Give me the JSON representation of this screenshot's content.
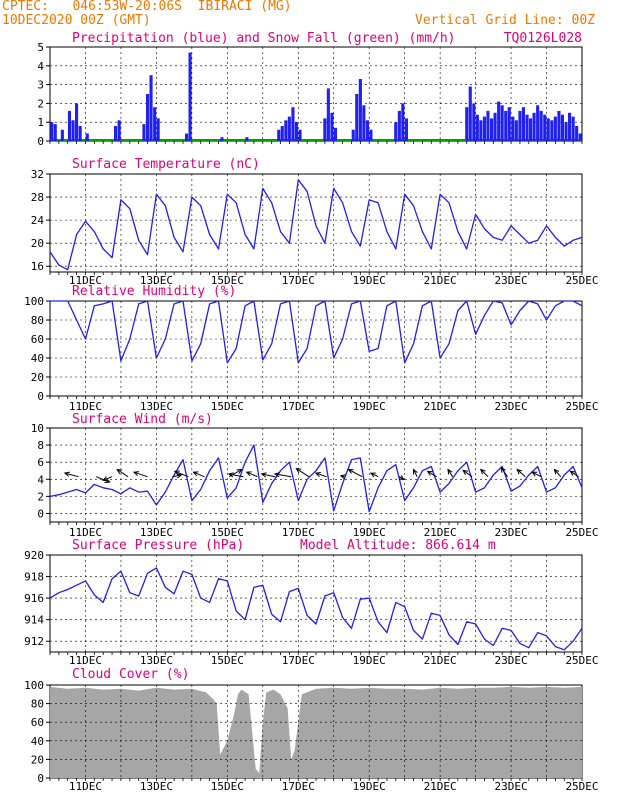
{
  "header": {
    "line1_left": "CPTEC:   046:53W-20:06S  IBIRACI (MG)",
    "line2_left": "10DEC2020 00Z (GMT)",
    "line2_right": "Vertical Grid Line: 00Z",
    "code": "TQ0126L028"
  },
  "colors": {
    "title": "#e0007c",
    "header": "#f07800",
    "series": "#2020f0",
    "snow": "#00a000",
    "cloud": "#a6a6a6"
  },
  "date_labels": [
    "11DEC",
    "13DEC",
    "15DEC",
    "17DEC",
    "19DEC",
    "21DEC",
    "23DEC",
    "25DEC"
  ],
  "chart_data": [
    {
      "id": "precip",
      "type": "bar",
      "title": "Precipitation (blue) and Snow Fall (green) (mm/h)",
      "ylim": [
        0,
        5
      ],
      "yticks": [
        0,
        1,
        2,
        3,
        4,
        5
      ],
      "xlim": [
        10.0,
        25.0
      ],
      "x_unit": "day of December 2020 (00Z)",
      "events": [
        {
          "day": 10.05,
          "value": 1.0
        },
        {
          "day": 10.15,
          "value": 0.9
        },
        {
          "day": 10.35,
          "value": 0.6
        },
        {
          "day": 10.55,
          "value": 1.6
        },
        {
          "day": 10.65,
          "value": 1.1
        },
        {
          "day": 10.75,
          "value": 2.0
        },
        {
          "day": 10.85,
          "value": 0.8
        },
        {
          "day": 11.05,
          "value": 0.4
        },
        {
          "day": 11.85,
          "value": 0.8
        },
        {
          "day": 11.95,
          "value": 1.1
        },
        {
          "day": 12.65,
          "value": 0.9
        },
        {
          "day": 12.75,
          "value": 2.5
        },
        {
          "day": 12.85,
          "value": 3.5
        },
        {
          "day": 12.95,
          "value": 1.8
        },
        {
          "day": 13.05,
          "value": 1.2
        },
        {
          "day": 13.85,
          "value": 0.4
        },
        {
          "day": 13.95,
          "value": 4.7
        },
        {
          "day": 14.85,
          "value": 0.2
        },
        {
          "day": 15.55,
          "value": 0.2
        },
        {
          "day": 16.45,
          "value": 0.6
        },
        {
          "day": 16.55,
          "value": 0.8
        },
        {
          "day": 16.65,
          "value": 1.1
        },
        {
          "day": 16.75,
          "value": 1.3
        },
        {
          "day": 16.85,
          "value": 1.8
        },
        {
          "day": 16.95,
          "value": 1.0
        },
        {
          "day": 17.05,
          "value": 0.6
        },
        {
          "day": 17.75,
          "value": 1.2
        },
        {
          "day": 17.85,
          "value": 2.8
        },
        {
          "day": 17.95,
          "value": 1.5
        },
        {
          "day": 18.05,
          "value": 0.7
        },
        {
          "day": 18.55,
          "value": 0.6
        },
        {
          "day": 18.65,
          "value": 2.5
        },
        {
          "day": 18.75,
          "value": 3.3
        },
        {
          "day": 18.85,
          "value": 1.9
        },
        {
          "day": 18.95,
          "value": 1.1
        },
        {
          "day": 19.05,
          "value": 0.6
        },
        {
          "day": 19.75,
          "value": 1.0
        },
        {
          "day": 19.85,
          "value": 1.6
        },
        {
          "day": 19.95,
          "value": 2.0
        },
        {
          "day": 20.05,
          "value": 1.2
        },
        {
          "day": 21.75,
          "value": 1.8
        },
        {
          "day": 21.85,
          "value": 2.9
        },
        {
          "day": 21.95,
          "value": 2.0
        },
        {
          "day": 22.05,
          "value": 1.4
        },
        {
          "day": 22.15,
          "value": 1.1
        },
        {
          "day": 22.25,
          "value": 1.3
        },
        {
          "day": 22.35,
          "value": 1.6
        },
        {
          "day": 22.45,
          "value": 1.2
        },
        {
          "day": 22.55,
          "value": 1.5
        },
        {
          "day": 22.65,
          "value": 2.1
        },
        {
          "day": 22.75,
          "value": 1.9
        },
        {
          "day": 22.85,
          "value": 1.6
        },
        {
          "day": 22.95,
          "value": 1.8
        },
        {
          "day": 23.05,
          "value": 1.3
        },
        {
          "day": 23.15,
          "value": 1.1
        },
        {
          "day": 23.25,
          "value": 1.6
        },
        {
          "day": 23.35,
          "value": 1.8
        },
        {
          "day": 23.45,
          "value": 1.4
        },
        {
          "day": 23.55,
          "value": 1.2
        },
        {
          "day": 23.65,
          "value": 1.5
        },
        {
          "day": 23.75,
          "value": 1.9
        },
        {
          "day": 23.85,
          "value": 1.6
        },
        {
          "day": 23.95,
          "value": 1.4
        },
        {
          "day": 24.05,
          "value": 1.2
        },
        {
          "day": 24.15,
          "value": 1.1
        },
        {
          "day": 24.25,
          "value": 1.3
        },
        {
          "day": 24.35,
          "value": 1.6
        },
        {
          "day": 24.45,
          "value": 1.4
        },
        {
          "day": 24.55,
          "value": 1.0
        },
        {
          "day": 24.65,
          "value": 1.5
        },
        {
          "day": 24.75,
          "value": 1.3
        },
        {
          "day": 24.85,
          "value": 0.8
        },
        {
          "day": 24.95,
          "value": 0.4
        }
      ]
    },
    {
      "id": "temp",
      "type": "line",
      "title": "Surface Temperature (nC)",
      "ylim": [
        15,
        32
      ],
      "yticks": [
        16,
        20,
        24,
        28,
        32
      ],
      "xlim": [
        10.0,
        25.0
      ],
      "x": [
        10.0,
        10.25,
        10.5,
        10.75,
        11.0,
        11.25,
        11.5,
        11.75,
        12.0,
        12.25,
        12.5,
        12.75,
        13.0,
        13.25,
        13.5,
        13.75,
        14.0,
        14.25,
        14.5,
        14.75,
        15.0,
        15.25,
        15.5,
        15.75,
        16.0,
        16.25,
        16.5,
        16.75,
        17.0,
        17.25,
        17.5,
        17.75,
        18.0,
        18.25,
        18.5,
        18.75,
        19.0,
        19.25,
        19.5,
        19.75,
        20.0,
        20.25,
        20.5,
        20.75,
        21.0,
        21.25,
        21.5,
        21.75,
        22.0,
        22.25,
        22.5,
        22.75,
        23.0,
        23.25,
        23.5,
        23.75,
        24.0,
        24.25,
        24.5,
        24.75,
        25.0
      ],
      "y": [
        18.5,
        16.2,
        15.4,
        21.5,
        23.8,
        22.0,
        19.0,
        17.5,
        27.5,
        26.0,
        20.5,
        18.0,
        28.5,
        26.5,
        21.0,
        18.5,
        28.0,
        26.5,
        21.5,
        19.0,
        28.5,
        27.0,
        21.5,
        19.0,
        29.5,
        27.0,
        22.0,
        20.0,
        31.0,
        29.0,
        23.0,
        20.0,
        29.5,
        27.0,
        22.0,
        19.5,
        27.5,
        27.0,
        22.0,
        19.0,
        28.5,
        26.5,
        22.0,
        19.0,
        28.5,
        27.0,
        22.0,
        19.0,
        25.0,
        22.5,
        21.0,
        20.5,
        23.0,
        21.5,
        20.0,
        20.5,
        23.0,
        21.0,
        19.5,
        20.5,
        21.0
      ]
    },
    {
      "id": "rh",
      "type": "line",
      "title": "Relative Humidity (%)",
      "ylim": [
        0,
        100
      ],
      "yticks": [
        0,
        20,
        40,
        60,
        80,
        100
      ],
      "xlim": [
        10.0,
        25.0
      ],
      "x": [
        10.0,
        10.25,
        10.5,
        10.75,
        11.0,
        11.25,
        11.5,
        11.75,
        12.0,
        12.25,
        12.5,
        12.75,
        13.0,
        13.25,
        13.5,
        13.75,
        14.0,
        14.25,
        14.5,
        14.75,
        15.0,
        15.25,
        15.5,
        15.75,
        16.0,
        16.25,
        16.5,
        16.75,
        17.0,
        17.25,
        17.5,
        17.75,
        18.0,
        18.25,
        18.5,
        18.75,
        19.0,
        19.25,
        19.5,
        19.75,
        20.0,
        20.25,
        20.5,
        20.75,
        21.0,
        21.25,
        21.5,
        21.75,
        22.0,
        22.25,
        22.5,
        22.75,
        23.0,
        23.25,
        23.5,
        23.75,
        24.0,
        24.25,
        24.5,
        24.75,
        25.0
      ],
      "y": [
        100,
        100,
        100,
        80,
        60,
        95,
        97,
        100,
        37,
        60,
        97,
        100,
        40,
        60,
        97,
        100,
        37,
        55,
        97,
        100,
        35,
        50,
        95,
        100,
        38,
        55,
        97,
        100,
        35,
        50,
        95,
        100,
        40,
        60,
        97,
        100,
        47,
        50,
        95,
        100,
        35,
        55,
        95,
        100,
        40,
        55,
        90,
        100,
        65,
        85,
        100,
        98,
        75,
        90,
        100,
        97,
        80,
        95,
        100,
        100,
        95
      ]
    },
    {
      "id": "wind",
      "type": "line",
      "title": "Surface Wind (m/s)",
      "ylim": [
        -1,
        10
      ],
      "yticks": [
        0,
        2,
        4,
        6,
        8,
        10
      ],
      "xlim": [
        10.0,
        25.0
      ],
      "x": [
        10.0,
        10.25,
        10.5,
        10.75,
        11.0,
        11.25,
        11.5,
        11.75,
        12.0,
        12.25,
        12.5,
        12.75,
        13.0,
        13.25,
        13.5,
        13.75,
        14.0,
        14.25,
        14.5,
        14.75,
        15.0,
        15.25,
        15.5,
        15.75,
        16.0,
        16.25,
        16.5,
        16.75,
        17.0,
        17.25,
        17.5,
        17.75,
        18.0,
        18.25,
        18.5,
        18.75,
        19.0,
        19.25,
        19.5,
        19.75,
        20.0,
        20.25,
        20.5,
        20.75,
        21.0,
        21.25,
        21.5,
        21.75,
        22.0,
        22.25,
        22.5,
        22.75,
        23.0,
        23.25,
        23.5,
        23.75,
        24.0,
        24.25,
        24.5,
        24.75,
        25.0
      ],
      "y": [
        2.0,
        2.2,
        2.5,
        2.8,
        2.4,
        3.4,
        3.0,
        2.8,
        2.3,
        3.0,
        2.5,
        2.6,
        1.0,
        2.5,
        4.5,
        6.3,
        1.5,
        2.8,
        5.0,
        6.5,
        1.8,
        3.0,
        6.0,
        8.0,
        1.3,
        3.5,
        5.0,
        6.0,
        1.5,
        4.0,
        5.0,
        6.5,
        0.3,
        3.5,
        6.3,
        6.5,
        0.2,
        3.0,
        5.0,
        5.7,
        1.5,
        3.0,
        5.0,
        5.5,
        2.5,
        3.5,
        5.0,
        6.0,
        2.5,
        3.0,
        4.5,
        5.5,
        2.6,
        3.2,
        4.5,
        5.5,
        2.5,
        3.0,
        4.5,
        5.5,
        3.0
      ],
      "arrows": [
        {
          "day": 10.8,
          "u": -1.5,
          "v": 0.4
        },
        {
          "day": 11.3,
          "u": 1.5,
          "v": -0.6
        },
        {
          "day": 11.75,
          "u": -1.0,
          "v": -0.4
        },
        {
          "day": 12.2,
          "u": -1.2,
          "v": 0.8
        },
        {
          "day": 12.75,
          "u": -1.5,
          "v": 0.5
        },
        {
          "day": 13.45,
          "u": 1.0,
          "v": 0.2
        },
        {
          "day": 13.9,
          "u": -1.5,
          "v": 0.6
        },
        {
          "day": 14.35,
          "u": -1.2,
          "v": 0.5
        },
        {
          "day": 15.05,
          "u": 1.4,
          "v": 0.8
        },
        {
          "day": 15.45,
          "u": -1.6,
          "v": 0.3
        },
        {
          "day": 15.85,
          "u": -1.2,
          "v": 0.5
        },
        {
          "day": 16.35,
          "u": -1.5,
          "v": 0.3
        },
        {
          "day": 16.8,
          "u": -1.8,
          "v": 0.3
        },
        {
          "day": 17.3,
          "u": -1.4,
          "v": 0.9
        },
        {
          "day": 17.8,
          "u": -1.2,
          "v": 0.4
        },
        {
          "day": 18.3,
          "u": -0.4,
          "v": 0.1
        },
        {
          "day": 18.8,
          "u": -1.5,
          "v": 0.8
        },
        {
          "day": 19.25,
          "u": -0.8,
          "v": 0.4
        },
        {
          "day": 19.85,
          "u": 0.5,
          "v": -0.3
        },
        {
          "day": 20.35,
          "u": -0.4,
          "v": 0.8
        },
        {
          "day": 20.9,
          "u": -1.0,
          "v": 0.6
        },
        {
          "day": 21.35,
          "u": -0.5,
          "v": 0.8
        },
        {
          "day": 21.9,
          "u": -1.0,
          "v": 0.7
        },
        {
          "day": 22.35,
          "u": -0.8,
          "v": 0.8
        },
        {
          "day": 22.9,
          "u": -0.7,
          "v": 1.0
        },
        {
          "day": 23.4,
          "u": -0.9,
          "v": 0.8
        },
        {
          "day": 23.85,
          "u": -1.0,
          "v": 0.5
        },
        {
          "day": 24.4,
          "u": -0.7,
          "v": 0.8
        },
        {
          "day": 24.9,
          "u": -0.9,
          "v": 0.6
        }
      ]
    },
    {
      "id": "pressure",
      "type": "line",
      "title": "Surface Pressure (hPa)",
      "subtitle": "Model Altitude: 866.614 m",
      "ylim": [
        911,
        920
      ],
      "yticks": [
        912,
        914,
        916,
        918,
        920
      ],
      "xlim": [
        10.0,
        25.0
      ],
      "x": [
        10.0,
        10.25,
        10.5,
        10.75,
        11.0,
        11.25,
        11.5,
        11.75,
        12.0,
        12.25,
        12.5,
        12.75,
        13.0,
        13.25,
        13.5,
        13.75,
        14.0,
        14.25,
        14.5,
        14.75,
        15.0,
        15.25,
        15.5,
        15.75,
        16.0,
        16.25,
        16.5,
        16.75,
        17.0,
        17.25,
        17.5,
        17.75,
        18.0,
        18.25,
        18.5,
        18.75,
        19.0,
        19.25,
        19.5,
        19.75,
        20.0,
        20.25,
        20.5,
        20.75,
        21.0,
        21.25,
        21.5,
        21.75,
        22.0,
        22.25,
        22.5,
        22.75,
        23.0,
        23.25,
        23.5,
        23.75,
        24.0,
        24.25,
        24.5,
        24.75,
        25.0
      ],
      "y": [
        916.0,
        916.5,
        916.8,
        917.2,
        917.6,
        916.3,
        915.6,
        917.8,
        918.5,
        916.5,
        916.2,
        918.3,
        918.8,
        917.0,
        916.4,
        918.5,
        918.2,
        916.0,
        915.6,
        917.8,
        917.6,
        914.8,
        914.0,
        917.0,
        917.2,
        914.5,
        913.8,
        916.6,
        916.9,
        914.4,
        913.6,
        916.2,
        916.5,
        914.2,
        913.2,
        915.9,
        916.0,
        913.8,
        912.8,
        915.6,
        915.2,
        913.0,
        912.2,
        914.6,
        914.4,
        912.6,
        911.7,
        913.8,
        913.6,
        912.2,
        911.6,
        913.2,
        913.0,
        911.8,
        911.4,
        912.8,
        912.5,
        911.5,
        911.2,
        912.0,
        913.2
      ]
    },
    {
      "id": "cloud",
      "type": "area",
      "title": "Cloud Cover (%)",
      "ylim": [
        0,
        100
      ],
      "yticks": [
        0,
        20,
        40,
        60,
        80,
        100
      ],
      "xlim": [
        10.0,
        25.0
      ],
      "x": [
        10.0,
        10.5,
        11.0,
        11.5,
        12.0,
        12.5,
        13.0,
        13.5,
        14.0,
        14.2,
        14.4,
        14.6,
        14.7,
        14.8,
        15.0,
        15.2,
        15.3,
        15.4,
        15.6,
        15.8,
        15.9,
        16.0,
        16.1,
        16.3,
        16.5,
        16.7,
        16.8,
        16.9,
        17.1,
        17.5,
        18.0,
        18.5,
        19.0,
        19.5,
        20.0,
        20.5,
        21.0,
        21.5,
        22.0,
        22.5,
        23.0,
        23.5,
        24.0,
        24.5,
        25.0
      ],
      "y": [
        98,
        96,
        97,
        95,
        96,
        94,
        97,
        95,
        96,
        94,
        92,
        85,
        80,
        25,
        40,
        70,
        90,
        95,
        90,
        10,
        5,
        60,
        92,
        95,
        90,
        75,
        20,
        30,
        90,
        96,
        97,
        96,
        97,
        96,
        96,
        95,
        97,
        96,
        97,
        97,
        98,
        97,
        98,
        97,
        98
      ]
    }
  ]
}
